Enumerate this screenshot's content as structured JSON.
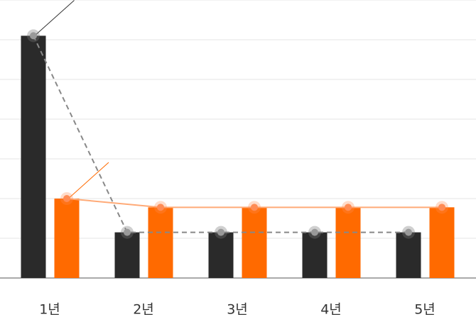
{
  "chart_data": {
    "type": "bar",
    "categories": [
      "1년",
      "2년",
      "3년",
      "4년",
      "5년"
    ],
    "series": [
      {
        "color": "#2a2a2a",
        "values": [
          6.1,
          1.15,
          1.15,
          1.15,
          1.15
        ]
      },
      {
        "color": "#ff6a00",
        "values": [
          2.0,
          1.78,
          1.78,
          1.78,
          1.78
        ]
      }
    ],
    "ylim": [
      0,
      7
    ],
    "yticks": [
      1,
      2,
      3,
      4,
      5,
      6,
      7
    ],
    "grid": true
  }
}
